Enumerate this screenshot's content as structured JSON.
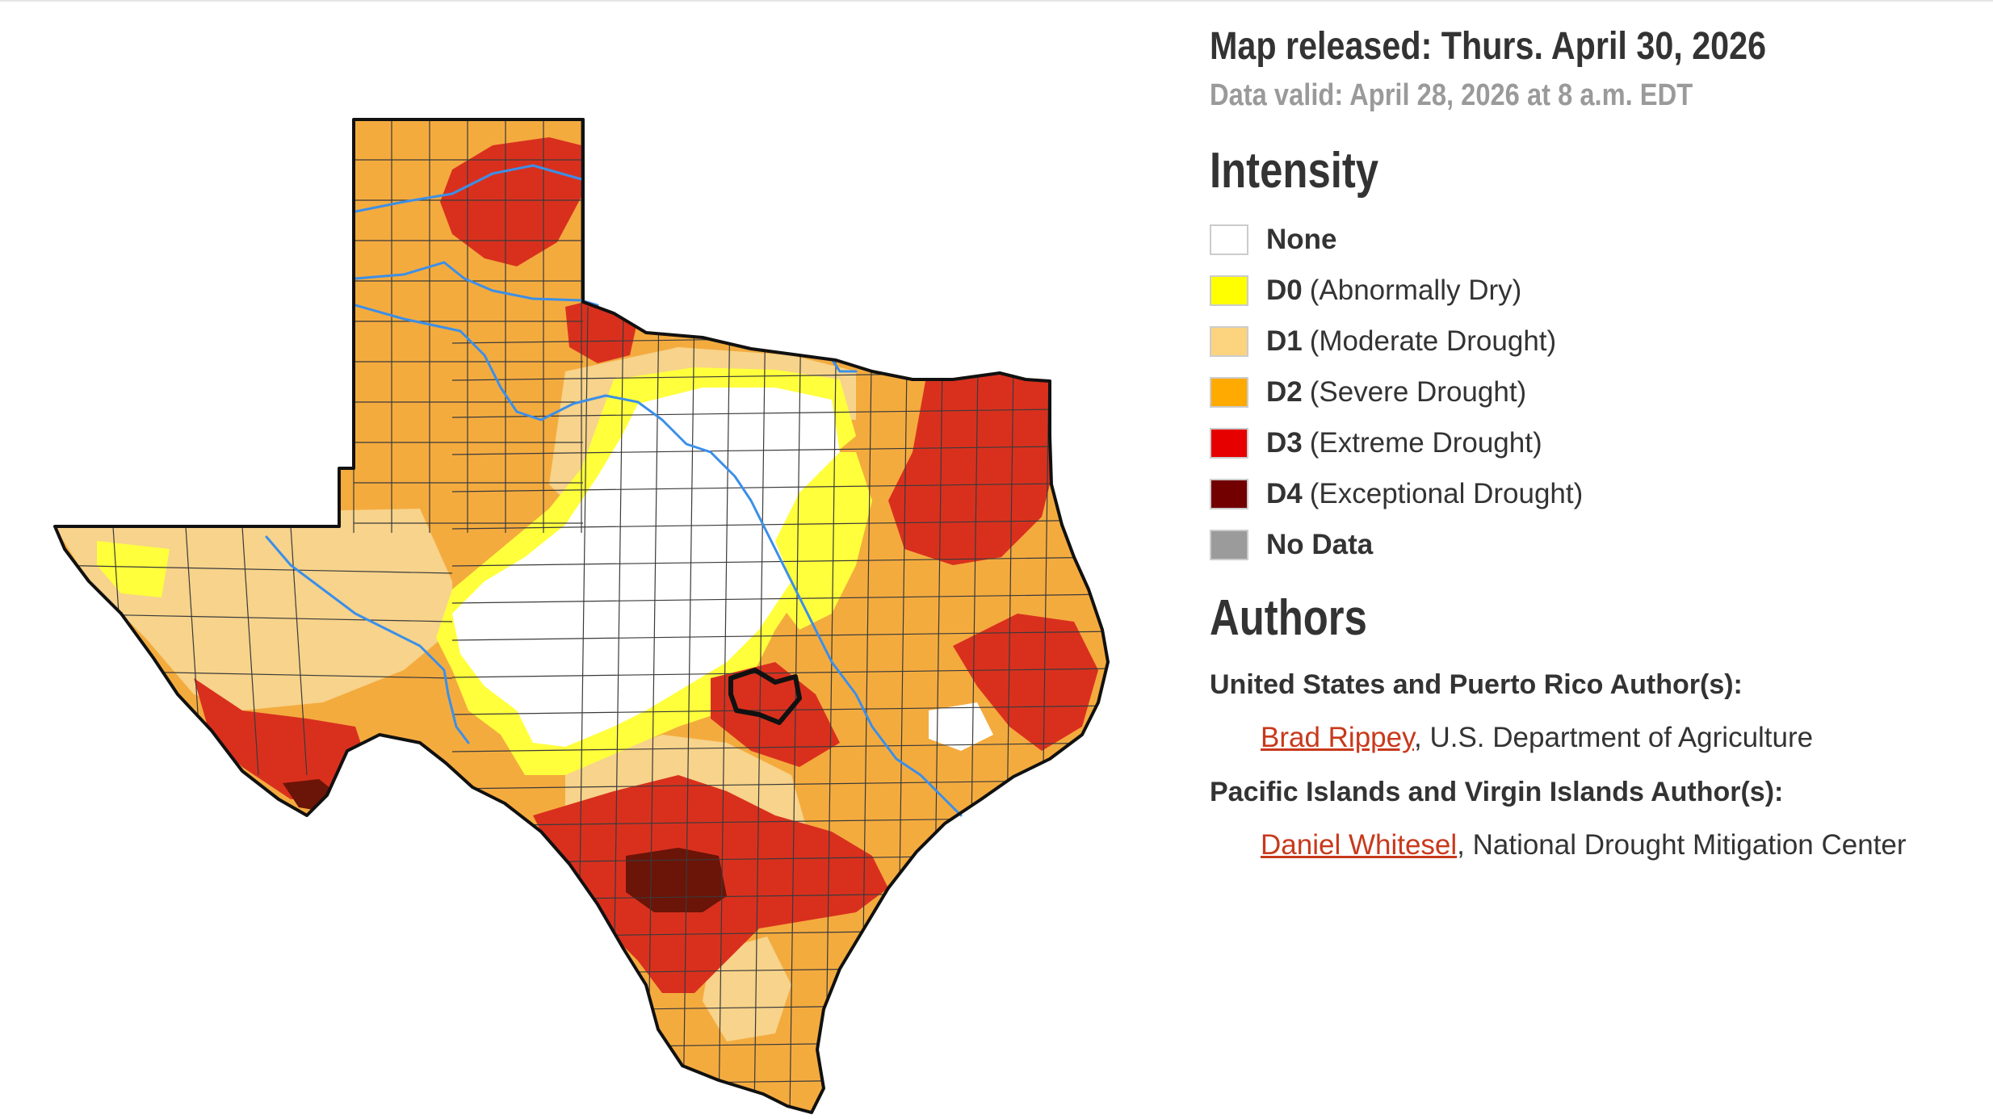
{
  "released": "Map released: Thurs. April 30, 2026",
  "valid": "Data valid: April 28, 2026 at 8 a.m. EDT",
  "intensity": {
    "title": "Intensity",
    "items": [
      {
        "code": "",
        "desc": "None",
        "color": "#ffffff"
      },
      {
        "code": "D0",
        "desc": "(Abnormally Dry)",
        "color": "#ffff00"
      },
      {
        "code": "D1",
        "desc": "(Moderate Drought)",
        "color": "#fcd37f"
      },
      {
        "code": "D2",
        "desc": "(Severe Drought)",
        "color": "#ffaa00"
      },
      {
        "code": "D3",
        "desc": "(Extreme Drought)",
        "color": "#e60000"
      },
      {
        "code": "D4",
        "desc": "(Exceptional Drought)",
        "color": "#730000"
      },
      {
        "code": "",
        "desc": "No Data",
        "color": "#9b9b9b"
      }
    ]
  },
  "authors": {
    "title": "Authors",
    "groups": [
      {
        "label": "United States and Puerto Rico Author(s):",
        "name": "Brad Rippey",
        "affiliation": ", U.S. Department of Agriculture"
      },
      {
        "label": "Pacific Islands and Virgin Islands Author(s):",
        "name": "Daniel Whitesel",
        "affiliation": ", National Drought Mitigation Center"
      }
    ]
  },
  "map": {
    "colors": {
      "d0": "#ffff3c",
      "d1": "#f7d38b",
      "d2": "#f4ab3e",
      "d3": "#d9301e",
      "d4": "#6b1408",
      "river": "#3b8fe8",
      "border": "#111111",
      "county": "#3a3a3a"
    }
  }
}
